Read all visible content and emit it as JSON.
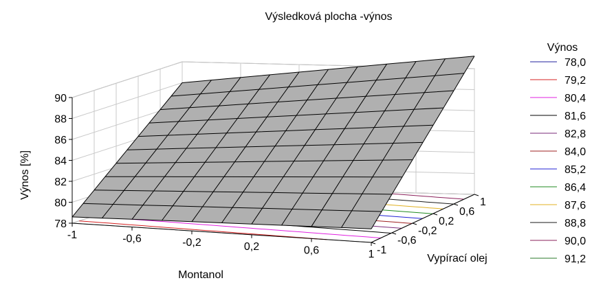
{
  "chart_data": {
    "type": "surface",
    "title": "Výsledková plocha -výnos",
    "zlabel": "Výnos [%]",
    "xlabel": "Montanol",
    "ylabel": "Vypírací olej",
    "x_ticks": [
      "-1",
      "-0,6",
      "-0,2",
      "0,2",
      "0,6",
      "1"
    ],
    "y_ticks": [
      "-1",
      "-0,6",
      "-0,2",
      "0,2",
      "0,6",
      "1"
    ],
    "z_ticks": [
      "78",
      "80",
      "82",
      "84",
      "86",
      "88",
      "90"
    ],
    "xlim": [
      -1,
      1
    ],
    "ylim": [
      -1,
      1
    ],
    "zlim": [
      78,
      90
    ],
    "surface_corners": {
      "x_-1_y_-1": 78.6,
      "x_1_y_-1": 79.3,
      "x_-1_y_1": 88.0,
      "x_1_y_1": 91.2
    },
    "legend": {
      "title": "Výnos",
      "position": "right",
      "entries": [
        {
          "label": "78,0",
          "color": "#1f1f9e"
        },
        {
          "label": "79,2",
          "color": "#d42020"
        },
        {
          "label": "80,4",
          "color": "#e020e0"
        },
        {
          "label": "81,6",
          "color": "#000000"
        },
        {
          "label": "82,8",
          "color": "#7a2a7a"
        },
        {
          "label": "84,0",
          "color": "#9e1f1f"
        },
        {
          "label": "85,2",
          "color": "#2020d4"
        },
        {
          "label": "86,4",
          "color": "#1f8a1f"
        },
        {
          "label": "87,6",
          "color": "#e0b020"
        },
        {
          "label": "88,8",
          "color": "#1a1a1a"
        },
        {
          "label": "90,0",
          "color": "#8a1f5a"
        },
        {
          "label": "91,2",
          "color": "#2a7a2a"
        }
      ]
    },
    "colors": {
      "surface_fill": "#b0b0b0",
      "mesh": "#000000",
      "grid": "#c8c8c8"
    }
  }
}
